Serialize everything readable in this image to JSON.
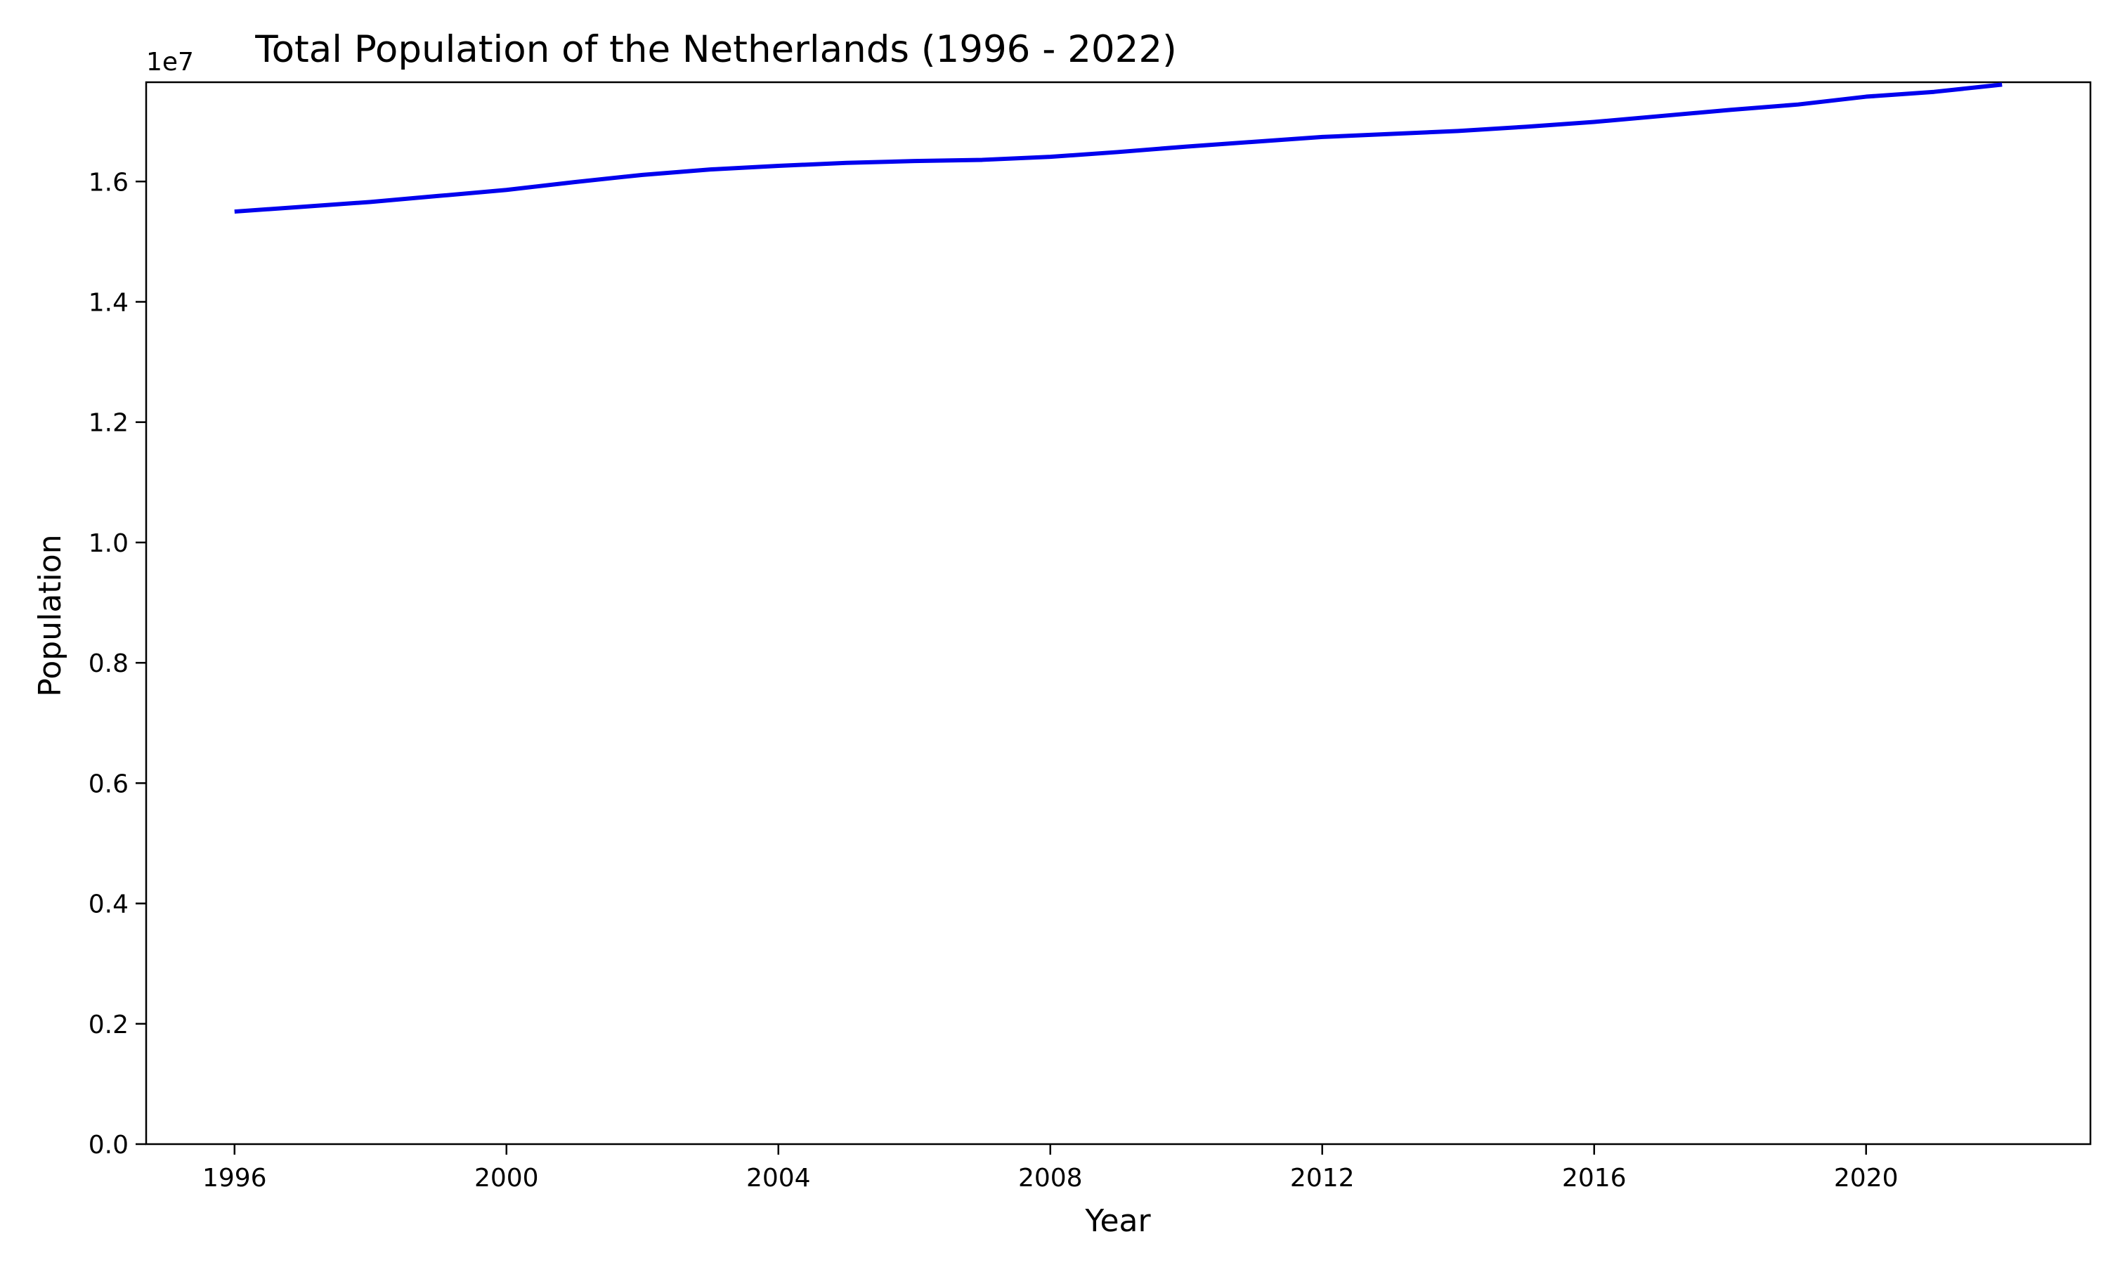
{
  "chart_data": {
    "type": "line",
    "title": "Total Population of the Netherlands (1996 - 2022)",
    "xlabel": "Year",
    "ylabel": "Population",
    "y_offset_label": "1e7",
    "xlim": [
      1994.7,
      2023.3
    ],
    "ylim": [
      0,
      17650000
    ],
    "x_ticks": [
      {
        "value": 1996,
        "label": "1996"
      },
      {
        "value": 2000,
        "label": "2000"
      },
      {
        "value": 2004,
        "label": "2004"
      },
      {
        "value": 2008,
        "label": "2008"
      },
      {
        "value": 2012,
        "label": "2012"
      },
      {
        "value": 2016,
        "label": "2016"
      },
      {
        "value": 2020,
        "label": "2020"
      }
    ],
    "y_ticks": [
      {
        "value": 0,
        "label": "0.0"
      },
      {
        "value": 2000000,
        "label": "0.2"
      },
      {
        "value": 4000000,
        "label": "0.4"
      },
      {
        "value": 6000000,
        "label": "0.6"
      },
      {
        "value": 8000000,
        "label": "0.8"
      },
      {
        "value": 10000000,
        "label": "1.0"
      },
      {
        "value": 12000000,
        "label": "1.2"
      },
      {
        "value": 14000000,
        "label": "1.4"
      },
      {
        "value": 16000000,
        "label": "1.6"
      }
    ],
    "grid": false,
    "series": [
      {
        "color": "#0000ee",
        "x": [
          1996,
          1997,
          1998,
          1999,
          2000,
          2001,
          2002,
          2003,
          2004,
          2005,
          2006,
          2007,
          2008,
          2009,
          2010,
          2011,
          2012,
          2013,
          2014,
          2015,
          2016,
          2017,
          2018,
          2019,
          2020,
          2021,
          2022
        ],
        "values": [
          15500000,
          15580000,
          15660000,
          15760000,
          15860000,
          15990000,
          16110000,
          16200000,
          16260000,
          16310000,
          16340000,
          16360000,
          16410000,
          16490000,
          16580000,
          16660000,
          16740000,
          16790000,
          16840000,
          16910000,
          16990000,
          17090000,
          17190000,
          17280000,
          17410000,
          17490000,
          17610000
        ]
      }
    ]
  }
}
